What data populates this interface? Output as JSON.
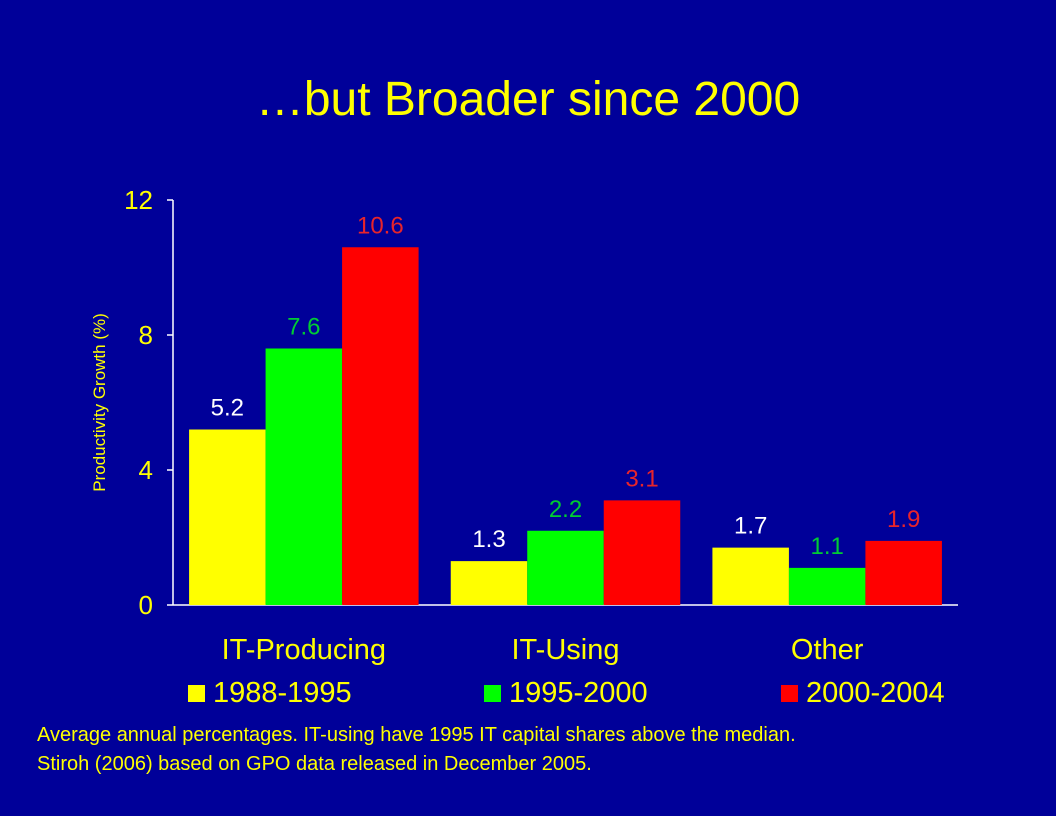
{
  "title": "…but Broader since 2000",
  "colors": {
    "background": "#000099",
    "text": "#ffff00",
    "axis": "#ffffff"
  },
  "chart_data": {
    "type": "bar",
    "categories": [
      "IT-Producing",
      "IT-Using",
      "Other"
    ],
    "series": [
      {
        "name": "1988-1995",
        "color": "#ffff00",
        "label_color": "#ffffff",
        "values": [
          5.2,
          1.3,
          1.7
        ]
      },
      {
        "name": "1995-2000",
        "color": "#00ff00",
        "label_color": "#00cc33",
        "values": [
          7.6,
          2.2,
          1.1
        ]
      },
      {
        "name": "2000-2004",
        "color": "#ff0000",
        "label_color": "#e8242a",
        "values": [
          10.6,
          3.1,
          1.9
        ]
      }
    ],
    "ylabel": "Productivity Growth (%)",
    "ylim": [
      0,
      12
    ],
    "yticks": [
      0,
      4,
      8,
      12
    ],
    "grid": false,
    "legend_position": "bottom"
  },
  "footnotes": [
    "Average annual percentages.  IT-using have 1995 IT capital shares above the median.",
    "Stiroh (2006) based on GPO data released in December 2005."
  ]
}
